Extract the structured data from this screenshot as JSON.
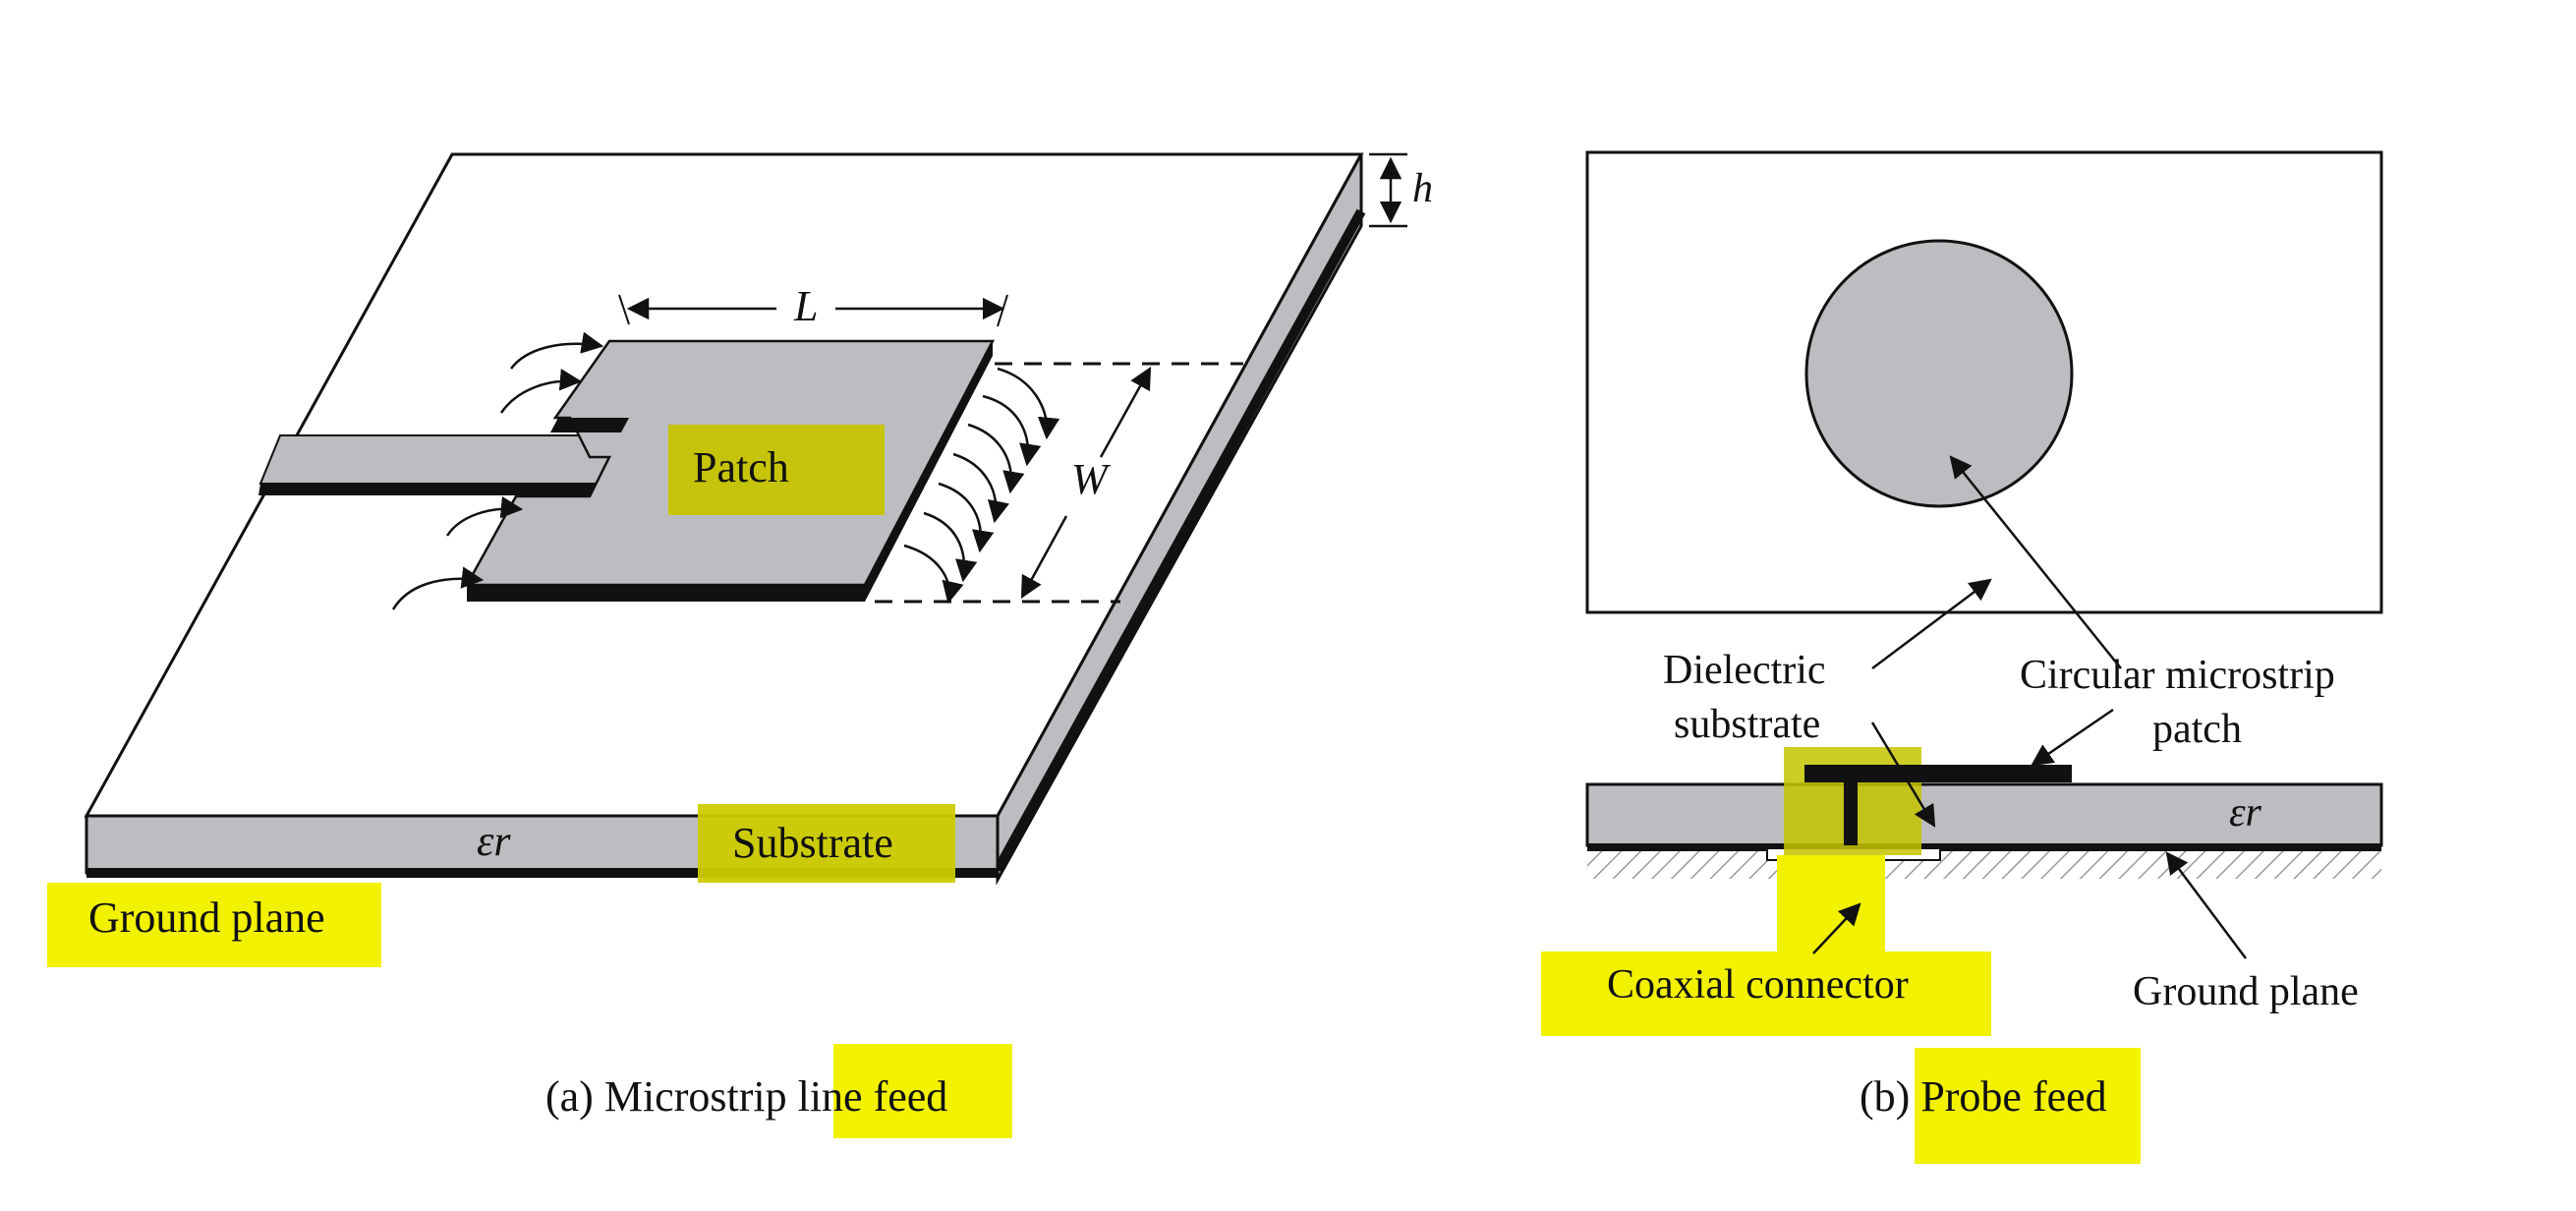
{
  "colors": {
    "highlight": "#f2f200",
    "patch_fill": "#bcbdc0",
    "substrate_fill": "#bcbdc0",
    "edge_dark": "#111111"
  },
  "figure_a": {
    "patch_label": "Patch",
    "length_label": "L",
    "width_label": "W",
    "height_label": "h",
    "permittivity_label": "εr",
    "substrate_label": "Substrate",
    "ground_plane_label": "Ground plane",
    "caption_prefix": "(a) Microstrip ",
    "caption_highlight": "line feed"
  },
  "figure_b": {
    "dielectric_label_line1": "Dielectric",
    "dielectric_label_line2": "substrate",
    "patch_label_line1": "Circular microstrip",
    "patch_label_line2": "patch",
    "permittivity_label": "εr",
    "coaxial_label": "Coaxial connector",
    "ground_plane_label": "Ground plane",
    "caption_prefix": "(b) ",
    "caption_highlight": "Probe feed"
  },
  "highlighted_terms": [
    "Patch",
    "Substrate",
    "Ground plane",
    "line feed",
    "Coaxial connector",
    "Probe feed"
  ]
}
